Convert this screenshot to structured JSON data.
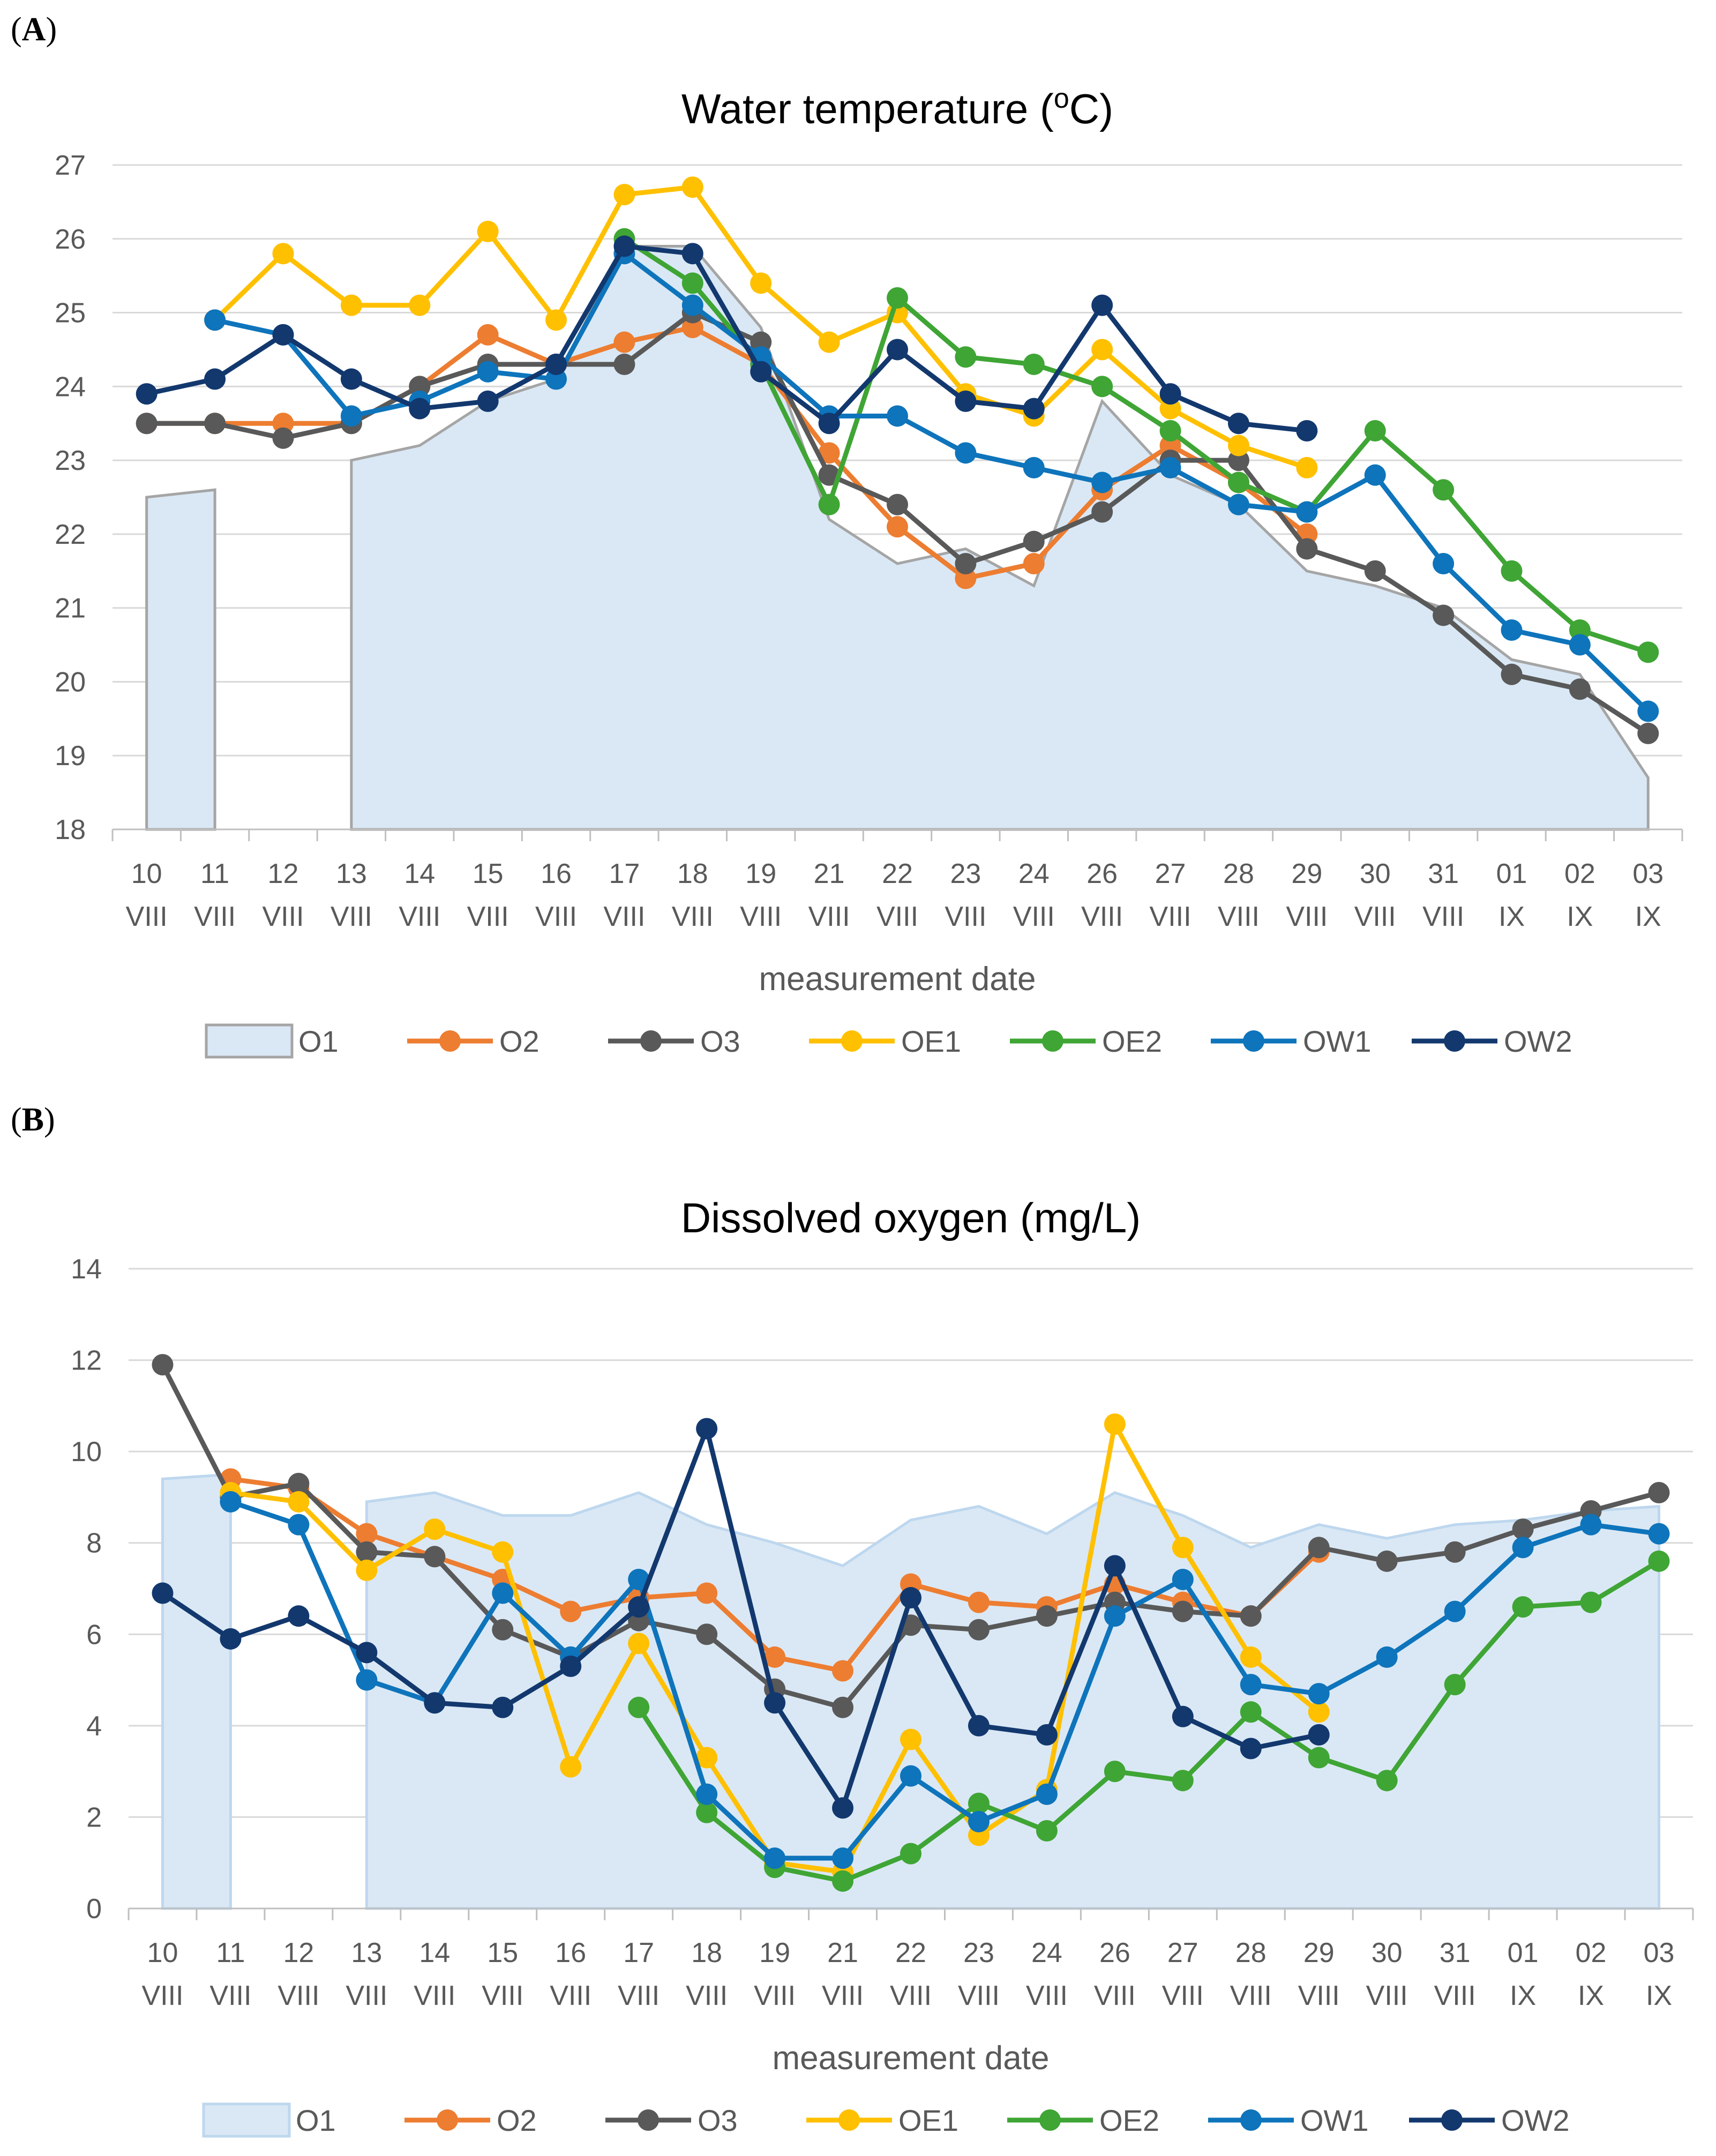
{
  "chart_data": [
    {
      "panel": "(A)",
      "type": "line",
      "title": "Water temperature (oC)",
      "title_main": "Water temperature (",
      "title_sup": "o",
      "title_tail": "C)",
      "xlabel": "measurement date",
      "ylabel": "",
      "ylim": [
        18,
        27
      ],
      "yticks": [
        18,
        19,
        20,
        21,
        22,
        23,
        24,
        25,
        26,
        27
      ],
      "categories": [
        [
          "10",
          "VIII"
        ],
        [
          "11",
          "VIII"
        ],
        [
          "12",
          "VIII"
        ],
        [
          "13",
          "VIII"
        ],
        [
          "14",
          "VIII"
        ],
        [
          "15",
          "VIII"
        ],
        [
          "16",
          "VIII"
        ],
        [
          "17",
          "VIII"
        ],
        [
          "18",
          "VIII"
        ],
        [
          "19",
          "VIII"
        ],
        [
          "21",
          "VIII"
        ],
        [
          "22",
          "VIII"
        ],
        [
          "23",
          "VIII"
        ],
        [
          "24",
          "VIII"
        ],
        [
          "26",
          "VIII"
        ],
        [
          "27",
          "VIII"
        ],
        [
          "28",
          "VIII"
        ],
        [
          "29",
          "VIII"
        ],
        [
          "30",
          "VIII"
        ],
        [
          "31",
          "VIII"
        ],
        [
          "01",
          "IX"
        ],
        [
          "02",
          "IX"
        ],
        [
          "03",
          "IX"
        ]
      ],
      "series": [
        {
          "name": "O1",
          "kind": "area",
          "color": "#dae8f5",
          "stroke": "#a5a5a5",
          "values": [
            22.5,
            22.6,
            null,
            23.0,
            23.2,
            23.8,
            24.1,
            25.9,
            25.9,
            24.8,
            22.2,
            21.6,
            21.8,
            21.3,
            23.8,
            22.8,
            22.4,
            21.5,
            21.3,
            21.0,
            20.3,
            20.1,
            18.7
          ]
        },
        {
          "name": "O2",
          "kind": "line",
          "color": "#ed7d31",
          "values": [
            23.5,
            23.5,
            23.5,
            23.5,
            24.0,
            24.7,
            24.3,
            24.6,
            24.8,
            24.3,
            23.1,
            22.1,
            21.4,
            21.6,
            22.6,
            23.2,
            22.7,
            22.0,
            null,
            null,
            null,
            null,
            null
          ]
        },
        {
          "name": "O3",
          "kind": "line",
          "color": "#595959",
          "values": [
            23.5,
            23.5,
            23.3,
            23.5,
            24.0,
            24.3,
            24.3,
            24.3,
            25.0,
            24.6,
            22.8,
            22.4,
            21.6,
            21.9,
            22.3,
            23.0,
            23.0,
            21.8,
            21.5,
            20.9,
            20.1,
            19.9,
            19.3
          ]
        },
        {
          "name": "OE1",
          "kind": "line",
          "color": "#ffc000",
          "values": [
            null,
            24.9,
            25.8,
            25.1,
            25.1,
            26.1,
            24.9,
            26.6,
            26.7,
            25.4,
            24.6,
            25.0,
            23.9,
            23.6,
            24.5,
            23.7,
            23.2,
            22.9,
            null,
            null,
            null,
            null,
            null
          ]
        },
        {
          "name": "OE2",
          "kind": "line",
          "color": "#3fa535",
          "values": [
            null,
            null,
            null,
            null,
            null,
            null,
            null,
            26.0,
            25.4,
            24.3,
            22.4,
            25.2,
            24.4,
            24.3,
            24.0,
            23.4,
            22.7,
            22.3,
            23.4,
            22.6,
            21.5,
            20.7,
            20.4
          ]
        },
        {
          "name": "OW1",
          "kind": "line",
          "color": "#0e74bb",
          "values": [
            null,
            24.9,
            24.7,
            23.6,
            23.8,
            24.2,
            24.1,
            25.8,
            25.1,
            24.4,
            23.6,
            23.6,
            23.1,
            22.9,
            22.7,
            22.9,
            22.4,
            22.3,
            22.8,
            21.6,
            20.7,
            20.5,
            19.6
          ]
        },
        {
          "name": "OW2",
          "kind": "line",
          "color": "#12386e",
          "values": [
            23.9,
            24.1,
            24.7,
            24.1,
            23.7,
            23.8,
            24.3,
            25.9,
            25.8,
            24.2,
            23.5,
            24.5,
            23.8,
            23.7,
            25.1,
            23.9,
            23.5,
            23.4,
            null,
            null,
            null,
            null,
            null
          ]
        }
      ]
    },
    {
      "panel": "(B)",
      "type": "line",
      "title": "Dissolved oxygen (mg/L)",
      "xlabel": "measurement date",
      "ylabel": "",
      "ylim": [
        0,
        14
      ],
      "yticks": [
        0,
        2,
        4,
        6,
        8,
        10,
        12,
        14
      ],
      "categories": [
        [
          "10",
          "VIII"
        ],
        [
          "11",
          "VIII"
        ],
        [
          "12",
          "VIII"
        ],
        [
          "13",
          "VIII"
        ],
        [
          "14",
          "VIII"
        ],
        [
          "15",
          "VIII"
        ],
        [
          "16",
          "VIII"
        ],
        [
          "17",
          "VIII"
        ],
        [
          "18",
          "VIII"
        ],
        [
          "19",
          "VIII"
        ],
        [
          "21",
          "VIII"
        ],
        [
          "22",
          "VIII"
        ],
        [
          "23",
          "VIII"
        ],
        [
          "24",
          "VIII"
        ],
        [
          "26",
          "VIII"
        ],
        [
          "27",
          "VIII"
        ],
        [
          "28",
          "VIII"
        ],
        [
          "29",
          "VIII"
        ],
        [
          "30",
          "VIII"
        ],
        [
          "31",
          "VIII"
        ],
        [
          "01",
          "IX"
        ],
        [
          "02",
          "IX"
        ],
        [
          "03",
          "IX"
        ]
      ],
      "series": [
        {
          "name": "O1",
          "kind": "area",
          "color": "#dae8f5",
          "stroke": "#bdd7ee",
          "values": [
            9.4,
            9.5,
            null,
            8.9,
            9.1,
            8.6,
            8.6,
            9.1,
            8.4,
            8.0,
            7.5,
            8.5,
            8.8,
            8.2,
            9.1,
            8.6,
            7.9,
            8.4,
            8.1,
            8.4,
            8.5,
            8.7,
            8.8
          ]
        },
        {
          "name": "O2",
          "kind": "line",
          "color": "#ed7d31",
          "values": [
            null,
            9.4,
            9.2,
            8.2,
            7.7,
            7.2,
            6.5,
            6.8,
            6.9,
            5.5,
            5.2,
            7.1,
            6.7,
            6.6,
            7.1,
            6.7,
            6.4,
            7.8,
            null,
            null,
            null,
            null,
            null
          ]
        },
        {
          "name": "O3",
          "kind": "line",
          "color": "#595959",
          "values": [
            11.9,
            9.0,
            9.3,
            7.8,
            7.7,
            6.1,
            5.5,
            6.3,
            6.0,
            4.8,
            4.4,
            6.2,
            6.1,
            6.4,
            6.7,
            6.5,
            6.4,
            7.9,
            7.6,
            7.8,
            8.3,
            8.7,
            9.1
          ]
        },
        {
          "name": "OE1",
          "kind": "line",
          "color": "#ffc000",
          "values": [
            null,
            9.1,
            8.9,
            7.4,
            8.3,
            7.8,
            3.1,
            5.8,
            3.3,
            1.0,
            0.8,
            3.7,
            1.6,
            2.6,
            10.6,
            7.9,
            5.5,
            4.3,
            null,
            null,
            null,
            null,
            null
          ]
        },
        {
          "name": "OE2",
          "kind": "line",
          "color": "#3fa535",
          "values": [
            null,
            null,
            null,
            null,
            null,
            null,
            null,
            4.4,
            2.1,
            0.9,
            0.6,
            1.2,
            2.3,
            1.7,
            3.0,
            2.8,
            4.3,
            3.3,
            2.8,
            4.9,
            6.6,
            6.7,
            7.6
          ]
        },
        {
          "name": "OW1",
          "kind": "line",
          "color": "#0e74bb",
          "values": [
            null,
            8.9,
            8.4,
            5.0,
            4.5,
            6.9,
            5.5,
            7.2,
            2.5,
            1.1,
            1.1,
            2.9,
            1.9,
            2.5,
            6.4,
            7.2,
            4.9,
            4.7,
            5.5,
            6.5,
            7.9,
            8.4,
            8.2
          ]
        },
        {
          "name": "OW2",
          "kind": "line",
          "color": "#12386e",
          "values": [
            6.9,
            5.9,
            6.4,
            5.6,
            4.5,
            4.4,
            5.3,
            6.6,
            10.5,
            4.5,
            2.2,
            6.8,
            4.0,
            3.8,
            7.5,
            4.2,
            3.5,
            3.8,
            null,
            null,
            null,
            null,
            null
          ]
        }
      ]
    }
  ]
}
